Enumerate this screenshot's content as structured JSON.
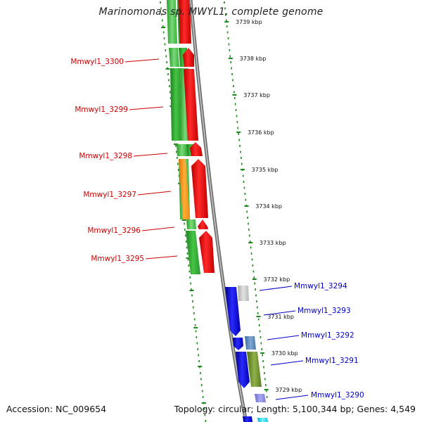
{
  "title": "Marinomonas sp. MWYL1, complete genome",
  "footer": {
    "accession": "Accession: NC_009654",
    "summary": "Topology: circular; Length: 5,100,344 bp; Genes: 4,549"
  },
  "colors": {
    "forward_label": "#cc0000",
    "reverse_label": "#0000cc",
    "ruler": "#1a8a1a",
    "backbone": "#8a8a8a"
  },
  "scale_labels": [
    "3739 kbp",
    "3738 kbp",
    "3737 kbp",
    "3736 kbp",
    "3735 kbp",
    "3734 kbp",
    "3733 kbp",
    "3732 kbp",
    "3731 kbp",
    "3730 kbp",
    "3729 kbp"
  ],
  "forward_genes": [
    {
      "label": "Mmwyl1_3300"
    },
    {
      "label": "Mmwyl1_3299"
    },
    {
      "label": "Mmwyl1_3298"
    },
    {
      "label": "Mmwyl1_3297"
    },
    {
      "label": "Mmwyl1_3296"
    },
    {
      "label": "Mmwyl1_3295"
    }
  ],
  "reverse_genes": [
    {
      "label": "Mmwyl1_3294"
    },
    {
      "label": "Mmwyl1_3293"
    },
    {
      "label": "Mmwyl1_3292"
    },
    {
      "label": "Mmwyl1_3291"
    },
    {
      "label": "Mmwyl1_3290"
    }
  ]
}
